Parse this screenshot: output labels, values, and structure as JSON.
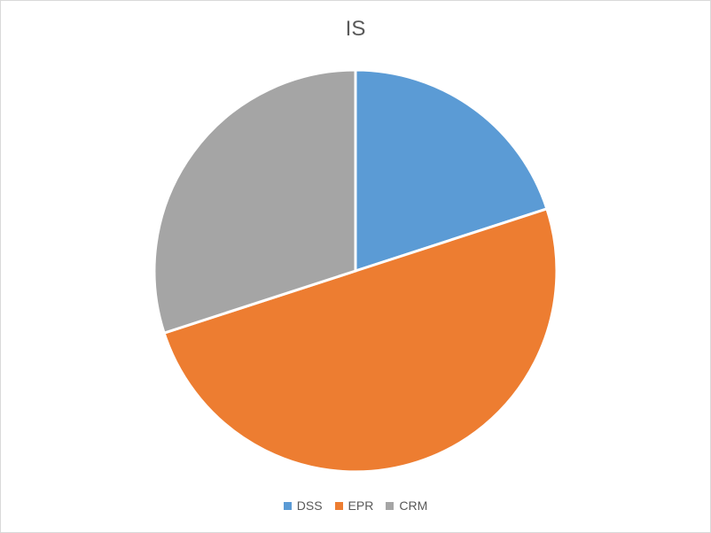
{
  "chart_data": {
    "type": "pie",
    "title": "IS",
    "categories": [
      "DSS",
      "EPR",
      "CRM"
    ],
    "values": [
      20,
      50,
      30
    ],
    "colors": [
      "#5b9bd5",
      "#ed7d31",
      "#a5a5a5"
    ],
    "legend_position": "bottom"
  }
}
